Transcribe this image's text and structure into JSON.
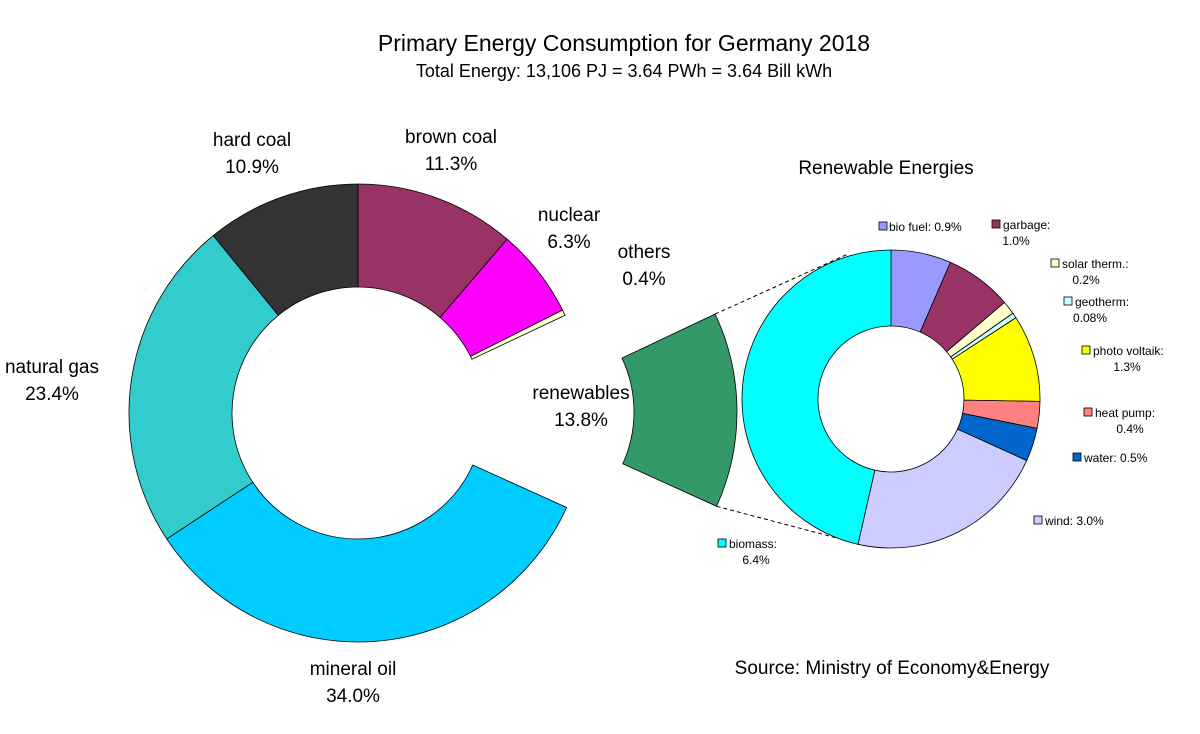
{
  "chart_data": [
    {
      "type": "pie",
      "title": "Primary Energy Consumption for Germany 2018",
      "subtitle": "Total Energy: 13,106 PJ = 3.64 PWh = 3.64 Bill kWh",
      "unit": "%",
      "slices": [
        {
          "label": "brown coal",
          "value": 11.3,
          "value_label": "11.3%",
          "color": "#993366"
        },
        {
          "label": "nuclear",
          "value": 6.3,
          "value_label": "6.3%",
          "color": "#ff00ff"
        },
        {
          "label": "others",
          "value": 0.4,
          "value_label": "0.4%",
          "color": "#ffffcc"
        },
        {
          "label": "renewables",
          "value": 13.8,
          "value_label": "13.8%",
          "color": "#339966",
          "exploded": true
        },
        {
          "label": "mineral oil",
          "value": 34.0,
          "value_label": "34.0%",
          "color": "#00ccff"
        },
        {
          "label": "natural gas",
          "value": 23.4,
          "value_label": "23.4%",
          "color": "#33cccc"
        },
        {
          "label": "hard coal",
          "value": 10.9,
          "value_label": "10.9%",
          "color": "#333333"
        }
      ]
    },
    {
      "type": "pie",
      "title": "Renewable Energies",
      "unit": "%",
      "slices": [
        {
          "label": "bio fuel",
          "value": 0.9,
          "value_label": "0.9%",
          "color": "#9999ff"
        },
        {
          "label": "garbage",
          "value": 1.0,
          "value_label": "1.0%",
          "color": "#993366"
        },
        {
          "label": "solar therm.",
          "value": 0.2,
          "value_label": "0.2%",
          "color": "#ffffcc"
        },
        {
          "label": "geotherm",
          "value": 0.08,
          "value_label": "0.08%",
          "color": "#ccffff"
        },
        {
          "label": "photo voltaik",
          "value": 1.3,
          "value_label": "1.3%",
          "color": "#ffff00"
        },
        {
          "label": "heat pump",
          "value": 0.4,
          "value_label": "0.4%",
          "color": "#ff8080"
        },
        {
          "label": "water",
          "value": 0.5,
          "value_label": "0.5%",
          "color": "#0066cc"
        },
        {
          "label": "wind",
          "value": 3.0,
          "value_label": "3.0%",
          "color": "#ccccff"
        },
        {
          "label": "biomass",
          "value": 6.4,
          "value_label": "6.4%",
          "color": "#00ffff"
        }
      ]
    }
  ],
  "texts": {
    "title": "Primary Energy Consumption for Germany 2018",
    "subtitle": "Total Energy: 13,106 PJ = 3.64 PWh = 3.64 Bill kWh",
    "renewables_title": "Renewable Energies",
    "source": "Source: Ministry of Economy&Energy",
    "main_labels": {
      "hard_coal": [
        "hard coal",
        "10.9%"
      ],
      "brown_coal": [
        "brown coal",
        "11.3%"
      ],
      "nuclear": [
        "nuclear",
        "6.3%"
      ],
      "others": [
        "others",
        "0.4%"
      ],
      "natural_gas": [
        "natural gas",
        "23.4%"
      ],
      "renewables": [
        "renewables",
        "13.8%"
      ],
      "mineral_oil": [
        "mineral oil",
        "34.0%"
      ]
    },
    "renewable_labels": {
      "bio_fuel": [
        "bio fuel: 0.9%"
      ],
      "garbage": [
        "garbage:",
        "1.0%"
      ],
      "solar_therm": [
        "solar therm.:",
        "0.2%"
      ],
      "geotherm": [
        "geotherm:",
        "0.08%"
      ],
      "photo_voltaik": [
        "photo voltaik:",
        "1.3%"
      ],
      "heat_pump": [
        "heat pump:",
        "0.4%"
      ],
      "water": [
        "water: 0.5%"
      ],
      "wind": [
        "wind: 3.0%"
      ],
      "biomass": [
        "biomass:",
        "6.4%"
      ]
    }
  }
}
